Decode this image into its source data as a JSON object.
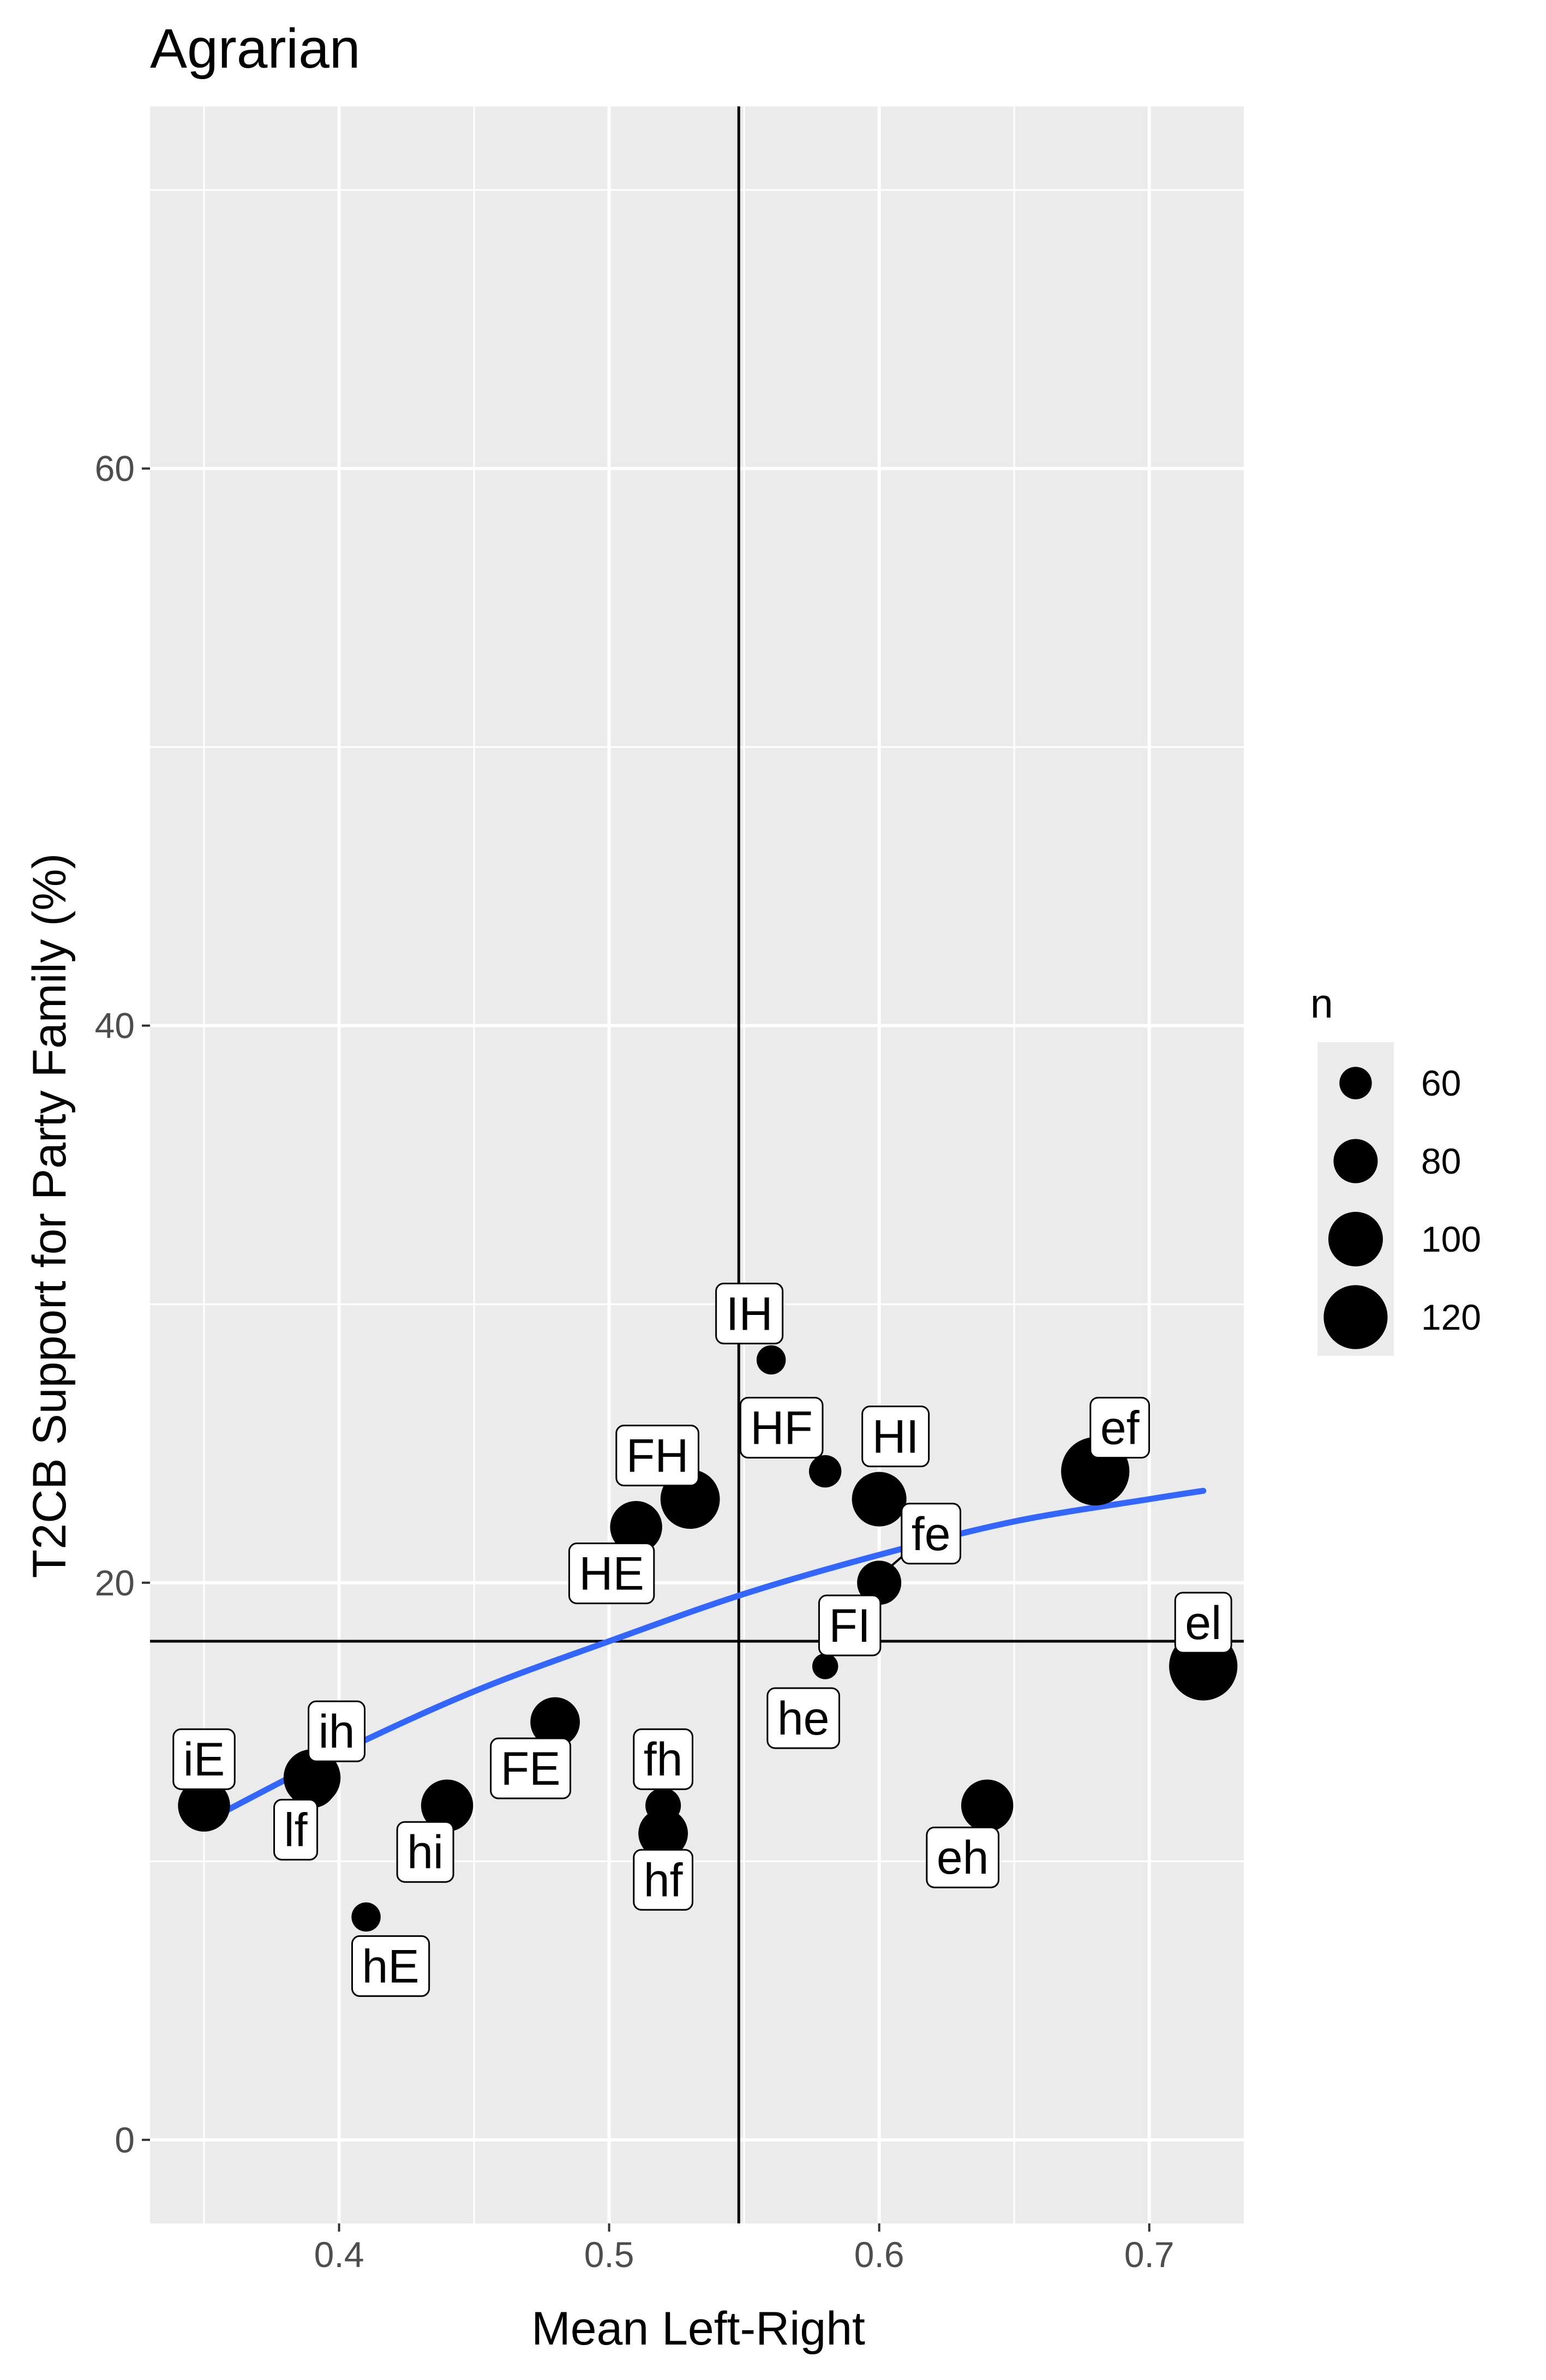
{
  "chart_data": {
    "type": "scatter",
    "title": "Agrarian",
    "xlabel": "Mean Left-Right",
    "ylabel": "T2CB Support for Party Family (%)",
    "xlim": [
      0.33,
      0.735
    ],
    "ylim": [
      -3,
      73
    ],
    "x_ticks": [
      0.4,
      0.5,
      0.6,
      0.7
    ],
    "x_tick_labels": [
      "0.4",
      "0.5",
      "0.6",
      "0.7"
    ],
    "y_ticks": [
      0,
      20,
      40,
      60
    ],
    "y_tick_labels": [
      "0",
      "20",
      "40",
      "60"
    ],
    "grid": true,
    "reference_lines": {
      "vertical_x": 0.548,
      "horizontal_y": 17.9
    },
    "smooth_line": {
      "color": "#3366FF",
      "x": [
        0.35,
        0.4,
        0.45,
        0.5,
        0.55,
        0.6,
        0.65,
        0.7,
        0.72
      ],
      "y": [
        11.4,
        13.9,
        16.1,
        17.9,
        19.6,
        21.0,
        22.2,
        23.0,
        23.3
      ]
    },
    "legend": {
      "title": "n",
      "position": "right",
      "values": [
        60,
        80,
        100,
        120
      ],
      "labels": [
        "60",
        "80",
        "100",
        "120"
      ]
    },
    "points": [
      {
        "label": "iE",
        "x": 0.35,
        "y": 12.0,
        "n": 95
      },
      {
        "label": "ih",
        "x": 0.39,
        "y": 13.0,
        "n": 105
      },
      {
        "label": "lf",
        "x": 0.39,
        "y": 12.8,
        "n": 90
      },
      {
        "label": "hE",
        "x": 0.41,
        "y": 8.0,
        "n": 55
      },
      {
        "label": "hi",
        "x": 0.44,
        "y": 12.0,
        "n": 95
      },
      {
        "label": "FE",
        "x": 0.48,
        "y": 15.0,
        "n": 90
      },
      {
        "label": "HE",
        "x": 0.51,
        "y": 22.0,
        "n": 95
      },
      {
        "label": "FH",
        "x": 0.53,
        "y": 23.0,
        "n": 110
      },
      {
        "label": "fh",
        "x": 0.52,
        "y": 12.0,
        "n": 65
      },
      {
        "label": "hf",
        "x": 0.52,
        "y": 11.0,
        "n": 90
      },
      {
        "label": "IH",
        "x": 0.56,
        "y": 28.0,
        "n": 55
      },
      {
        "label": "HF",
        "x": 0.58,
        "y": 24.0,
        "n": 60
      },
      {
        "label": "HI",
        "x": 0.6,
        "y": 23.0,
        "n": 100
      },
      {
        "label": "fe",
        "x": 0.6,
        "y": 20.0,
        "n": 80
      },
      {
        "label": "FI",
        "x": 0.58,
        "y": 17.0,
        "n": 50
      },
      {
        "label": "he",
        "x": 0.58,
        "y": 17.0,
        "n": 50
      },
      {
        "label": "ef",
        "x": 0.68,
        "y": 24.0,
        "n": 130
      },
      {
        "label": "el",
        "x": 0.72,
        "y": 17.0,
        "n": 130
      },
      {
        "label": "eh",
        "x": 0.64,
        "y": 12.0,
        "n": 95
      }
    ]
  },
  "colors": {
    "panel_background": "#EBEBEB",
    "grid": "#FFFFFF",
    "points": "#000000",
    "smooth_line": "#3366FF",
    "reference_lines": "#000000",
    "label_fill": "#FFFFFF"
  }
}
